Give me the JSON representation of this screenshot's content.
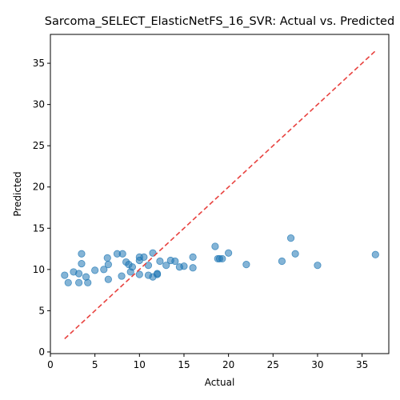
{
  "chart_data": {
    "type": "scatter",
    "title": "Sarcoma_SELECT_ElasticNetFS_16_SVR: Actual vs. Predicted",
    "xlabel": "Actual",
    "ylabel": "Predicted",
    "xlim": [
      0,
      38
    ],
    "ylim": [
      -0.2,
      38.5
    ],
    "xticks": [
      0,
      5,
      10,
      15,
      20,
      25,
      30,
      35
    ],
    "yticks": [
      0,
      5,
      10,
      15,
      20,
      25,
      30,
      35
    ],
    "grid": false,
    "points": [
      {
        "x": 1.6,
        "y": 9.3
      },
      {
        "x": 2.0,
        "y": 8.4
      },
      {
        "x": 2.6,
        "y": 9.7
      },
      {
        "x": 3.2,
        "y": 9.5
      },
      {
        "x": 3.2,
        "y": 8.4
      },
      {
        "x": 3.5,
        "y": 10.7
      },
      {
        "x": 3.5,
        "y": 11.9
      },
      {
        "x": 4.0,
        "y": 9.1
      },
      {
        "x": 4.2,
        "y": 8.4
      },
      {
        "x": 5.0,
        "y": 9.9
      },
      {
        "x": 6.0,
        "y": 10.0
      },
      {
        "x": 6.4,
        "y": 11.4
      },
      {
        "x": 6.5,
        "y": 10.6
      },
      {
        "x": 6.5,
        "y": 8.8
      },
      {
        "x": 7.5,
        "y": 11.9
      },
      {
        "x": 8.0,
        "y": 9.2
      },
      {
        "x": 8.1,
        "y": 11.9
      },
      {
        "x": 8.5,
        "y": 10.9
      },
      {
        "x": 8.8,
        "y": 10.6
      },
      {
        "x": 9.0,
        "y": 9.7
      },
      {
        "x": 9.2,
        "y": 10.3
      },
      {
        "x": 10.0,
        "y": 11.1
      },
      {
        "x": 10.0,
        "y": 11.5
      },
      {
        "x": 10.0,
        "y": 9.4
      },
      {
        "x": 10.5,
        "y": 11.5
      },
      {
        "x": 11.0,
        "y": 10.5
      },
      {
        "x": 11.0,
        "y": 9.3
      },
      {
        "x": 11.5,
        "y": 12.0
      },
      {
        "x": 11.5,
        "y": 9.1
      },
      {
        "x": 12.0,
        "y": 9.4
      },
      {
        "x": 12.0,
        "y": 9.5
      },
      {
        "x": 12.3,
        "y": 11.0
      },
      {
        "x": 13.0,
        "y": 10.5
      },
      {
        "x": 13.5,
        "y": 11.1
      },
      {
        "x": 14.0,
        "y": 11.0
      },
      {
        "x": 14.5,
        "y": 10.3
      },
      {
        "x": 15.0,
        "y": 10.4
      },
      {
        "x": 16.0,
        "y": 11.5
      },
      {
        "x": 16.0,
        "y": 10.2
      },
      {
        "x": 18.5,
        "y": 12.8
      },
      {
        "x": 18.8,
        "y": 11.3
      },
      {
        "x": 19.0,
        "y": 11.3
      },
      {
        "x": 19.3,
        "y": 11.3
      },
      {
        "x": 20.0,
        "y": 12.0
      },
      {
        "x": 22.0,
        "y": 10.6
      },
      {
        "x": 26.0,
        "y": 11.0
      },
      {
        "x": 27.0,
        "y": 13.8
      },
      {
        "x": 27.5,
        "y": 11.9
      },
      {
        "x": 30.0,
        "y": 10.5
      },
      {
        "x": 36.5,
        "y": 11.8
      }
    ],
    "reference_line": {
      "x": [
        1.6,
        36.5
      ],
      "y": [
        1.6,
        36.5
      ],
      "style": "dashed"
    },
    "colors": {
      "points": "#1f77b4",
      "reference_line": "#e8423f",
      "axis": "#000000"
    }
  }
}
